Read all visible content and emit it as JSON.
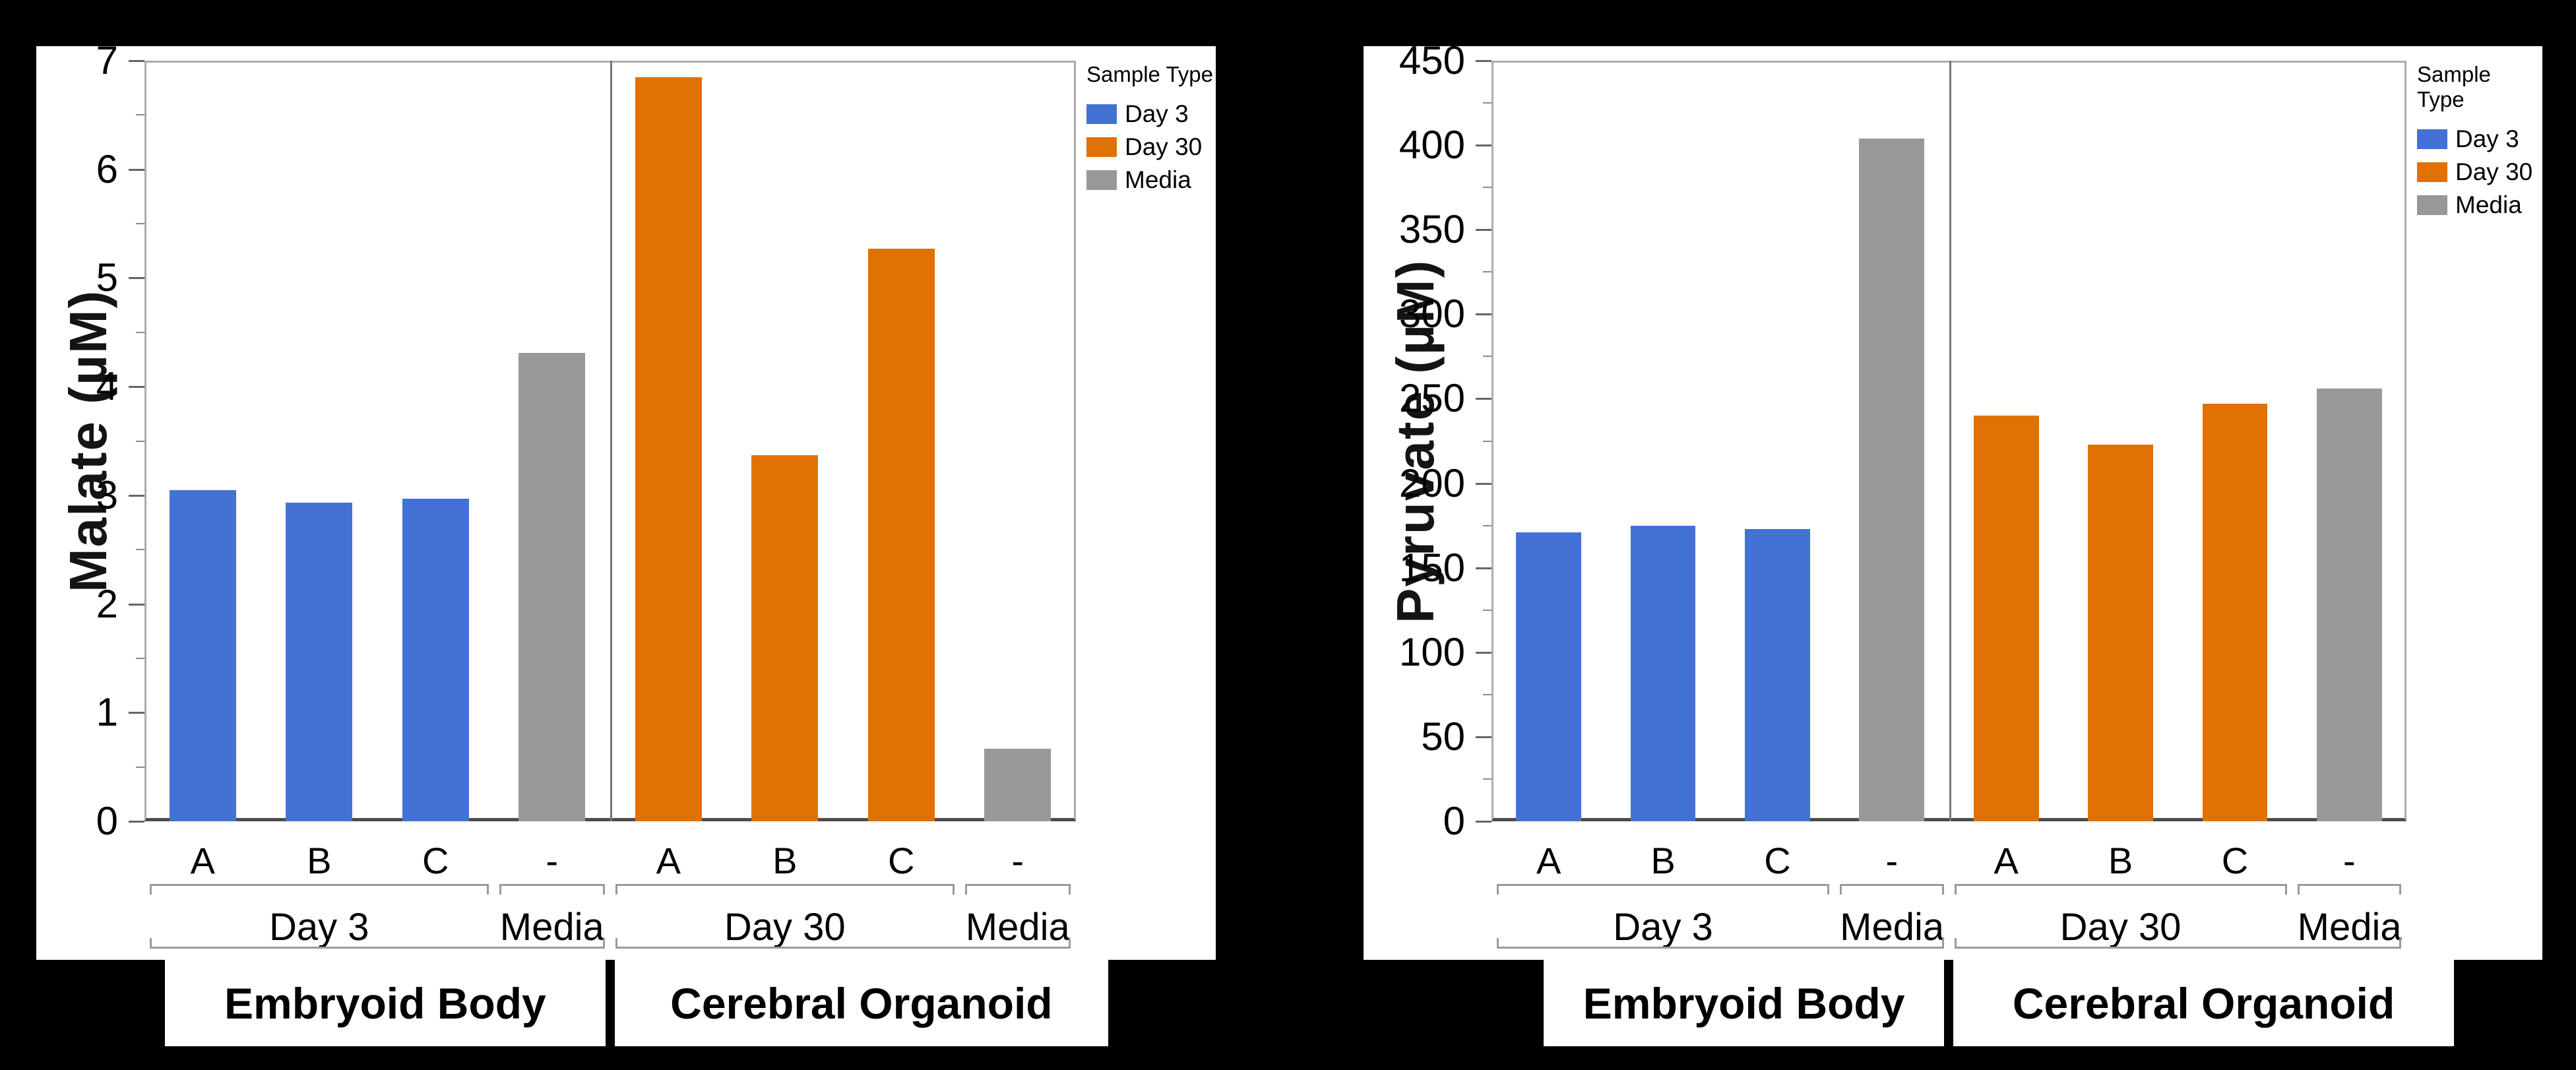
{
  "figure": {
    "background_color": "#000000",
    "panel_color": "#FFFFFF"
  },
  "colors": {
    "Day 3": "#4472D4",
    "Day 30": "#E07205",
    "Media": "#989898"
  },
  "legend": {
    "title": "Sample Type",
    "items": [
      {
        "label": "Day 3"
      },
      {
        "label": "Day 30"
      },
      {
        "label": "Media"
      }
    ]
  },
  "chart_data": [
    {
      "type": "bar",
      "title": "",
      "ylabel": "Malate (µM)",
      "xlabel": "",
      "ylim": [
        0,
        7
      ],
      "ytick_step": 1,
      "yminor_step": 0.5,
      "ytick_labels": [
        "0",
        "1",
        "2",
        "3",
        "4",
        "5",
        "6",
        "7"
      ],
      "grid": false,
      "legend_position": "top-right-outside",
      "categories": [
        "A",
        "B",
        "C",
        "-",
        "A",
        "B",
        "C",
        "-"
      ],
      "sample_types": [
        "Day 3",
        "Day 3",
        "Day 3",
        "Media",
        "Day 30",
        "Day 30",
        "Day 30",
        "Media"
      ],
      "values": [
        3.05,
        2.93,
        2.97,
        4.31,
        6.85,
        3.37,
        5.27,
        0.67
      ],
      "group_brackets": [
        {
          "label": "Day 3",
          "from": 0,
          "to": 2
        },
        {
          "label": "Media",
          "from": 3,
          "to": 3
        },
        {
          "label": "Day 30",
          "from": 4,
          "to": 6
        },
        {
          "label": "Media",
          "from": 7,
          "to": 7
        }
      ],
      "outer_brackets": [
        {
          "label": "Embryoid Body",
          "from": 0,
          "to": 3
        },
        {
          "label": "Cerebral Organoid",
          "from": 4,
          "to": 7
        }
      ]
    },
    {
      "type": "bar",
      "title": "",
      "ylabel": "Pyruvate (µM)",
      "xlabel": "",
      "ylim": [
        0,
        450
      ],
      "ytick_step": 50,
      "yminor_step": 25,
      "ytick_labels": [
        "0",
        "50",
        "100",
        "150",
        "200",
        "250",
        "300",
        "350",
        "400",
        "450"
      ],
      "grid": false,
      "legend_position": "top-right-outside",
      "categories": [
        "A",
        "B",
        "C",
        "-",
        "A",
        "B",
        "C",
        "-"
      ],
      "sample_types": [
        "Day 3",
        "Day 3",
        "Day 3",
        "Media",
        "Day 30",
        "Day 30",
        "Day 30",
        "Media"
      ],
      "values": [
        171,
        175,
        173,
        404,
        240,
        223,
        247,
        256
      ],
      "group_brackets": [
        {
          "label": "Day 3",
          "from": 0,
          "to": 2
        },
        {
          "label": "Media",
          "from": 3,
          "to": 3
        },
        {
          "label": "Day 30",
          "from": 4,
          "to": 6
        },
        {
          "label": "Media",
          "from": 7,
          "to": 7
        }
      ],
      "outer_brackets": [
        {
          "label": "Embryoid Body",
          "from": 0,
          "to": 3
        },
        {
          "label": "Cerebral Organoid",
          "from": 4,
          "to": 7
        }
      ]
    }
  ]
}
